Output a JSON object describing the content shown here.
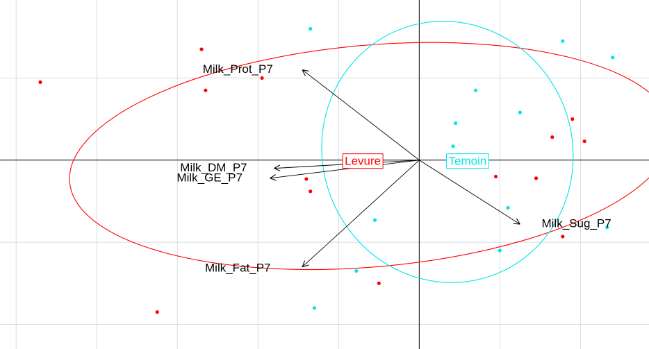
{
  "chart_data": {
    "type": "scatter",
    "title": "",
    "xlabel": "",
    "ylabel": "",
    "xlim": [
      -5.2,
      2.85
    ],
    "ylim": [
      -2.3,
      1.95
    ],
    "grid": true,
    "grid_step": 1,
    "groups": [
      {
        "name": "Levure",
        "color": "#ff0000",
        "label_at": [
          -0.7,
          -0.02
        ],
        "points": [
          [
            -4.7,
            0.95
          ],
          [
            -2.7,
            1.35
          ],
          [
            -2.65,
            0.85
          ],
          [
            -1.95,
            1.0
          ],
          [
            -1.4,
            -0.23
          ],
          [
            -1.35,
            -0.38
          ],
          [
            -0.5,
            -1.5
          ],
          [
            0.95,
            -0.2
          ],
          [
            1.45,
            -0.22
          ],
          [
            1.65,
            0.28
          ],
          [
            1.9,
            0.5
          ],
          [
            2.05,
            0.23
          ],
          [
            1.78,
            -0.93
          ],
          [
            -3.25,
            -1.85
          ]
        ],
        "ellipse": {
          "center": [
            -0.6,
            0.05
          ],
          "rx": 3.75,
          "ry": 1.35,
          "angle_deg": -5
        }
      },
      {
        "name": "Temoin",
        "color": "#00e5e5",
        "label_at": [
          0.6,
          -0.02
        ],
        "points": [
          [
            -1.35,
            1.6
          ],
          [
            0.7,
            0.85
          ],
          [
            0.45,
            0.45
          ],
          [
            0.42,
            0.17
          ],
          [
            1.25,
            0.58
          ],
          [
            1.78,
            1.45
          ],
          [
            2.4,
            1.25
          ],
          [
            1.1,
            -0.58
          ],
          [
            2.33,
            -0.82
          ],
          [
            1.0,
            -1.1
          ],
          [
            -0.55,
            -0.73
          ],
          [
            -0.78,
            -1.35
          ],
          [
            -1.3,
            -1.8
          ]
        ],
        "ellipse": {
          "center": [
            0.35,
            0.1
          ],
          "rx": 1.55,
          "ry": 1.6,
          "angle_deg": -20
        }
      }
    ],
    "arrows": [
      {
        "name": "Milk_Prot_P7",
        "to": [
          -1.45,
          1.1
        ],
        "label_at": [
          -2.25,
          1.1
        ]
      },
      {
        "name": "Milk_DM_P7",
        "to": [
          -1.8,
          -0.1
        ],
        "label_at": [
          -2.55,
          -0.1
        ]
      },
      {
        "name": "Milk_GE_P7",
        "to": [
          -1.85,
          -0.22
        ],
        "label_at": [
          -2.6,
          -0.22
        ]
      },
      {
        "name": "Milk_Sug_P7",
        "to": [
          1.25,
          -0.78
        ],
        "label_at": [
          1.95,
          -0.78
        ]
      },
      {
        "name": "Milk_Fat_P7",
        "to": [
          -1.45,
          -1.3
        ],
        "label_at": [
          -2.25,
          -1.32
        ]
      }
    ]
  }
}
